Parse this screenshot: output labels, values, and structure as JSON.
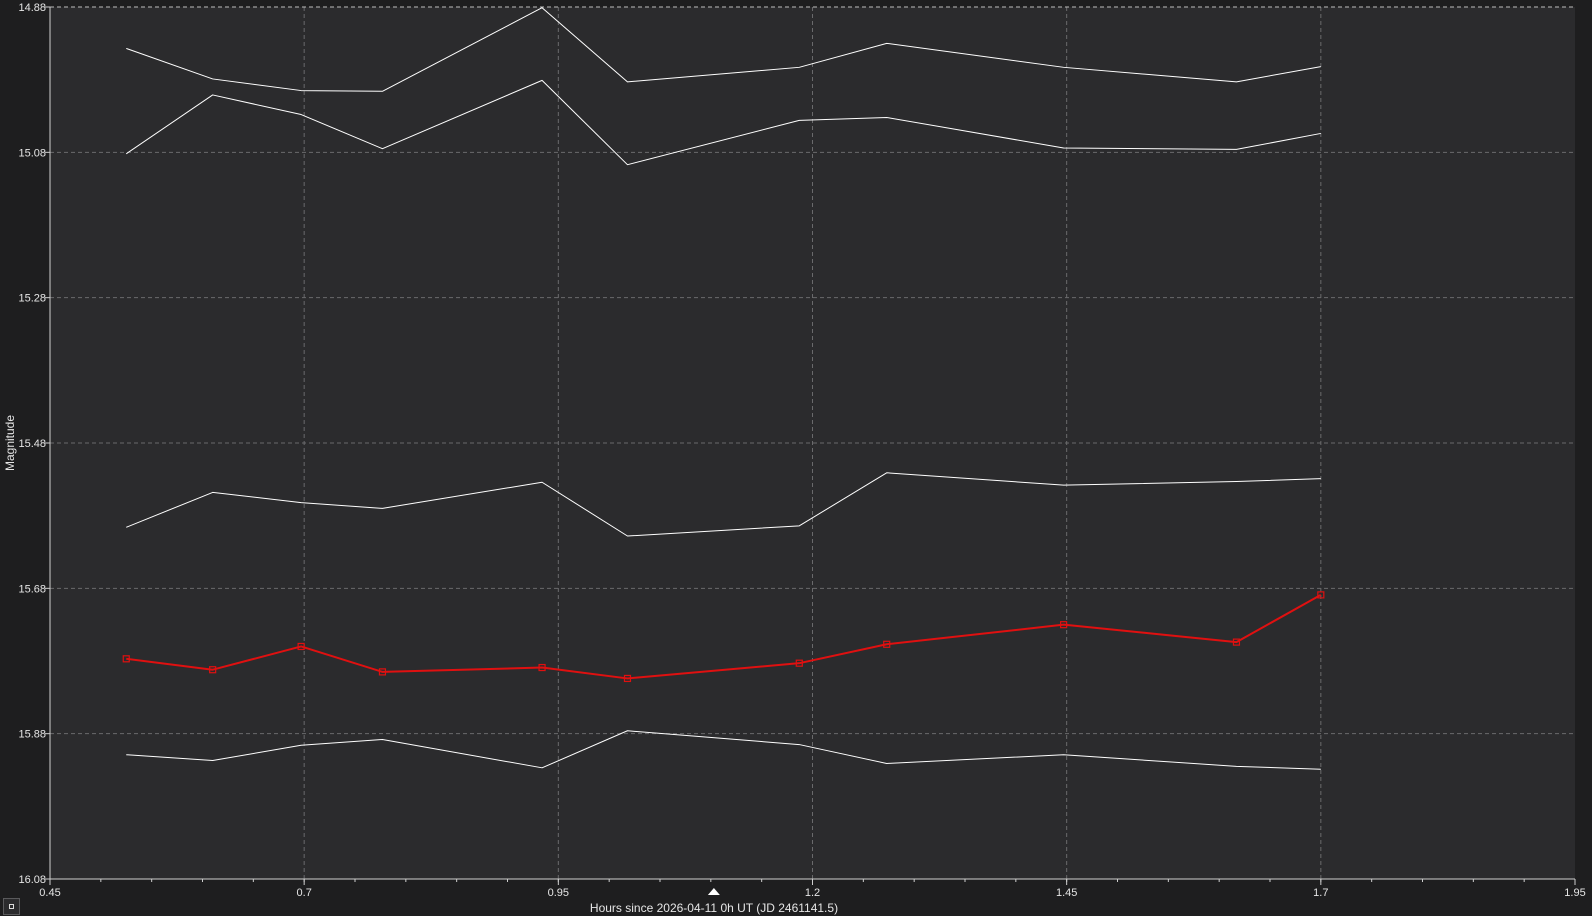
{
  "chart_data": {
    "type": "line",
    "xlabel": "Hours since 2026-04-11 0h UT (JD 2461141.5)",
    "ylabel": "Magnitude",
    "xlim": [
      0.45,
      1.95
    ],
    "ylim": [
      16.08,
      14.88
    ],
    "y_inverted": true,
    "grid": true,
    "x_ticks": [
      "0.45",
      "0.7",
      "0.95",
      "1.2",
      "1.45",
      "1.7",
      "1.95"
    ],
    "y_ticks": [
      "14.88",
      "15.08",
      "15.28",
      "15.48",
      "15.68",
      "15.88",
      "16.08"
    ],
    "x_marker": 1.103,
    "x": [
      0.525,
      0.61,
      0.697,
      0.777,
      0.934,
      1.018,
      1.187,
      1.273,
      1.447,
      1.617,
      1.7
    ],
    "series": [
      {
        "color": "#ffffff",
        "markers": false,
        "values": [
          14.937,
          14.979,
          14.995,
          14.996,
          14.881,
          14.983,
          14.963,
          14.93,
          14.963,
          14.983,
          14.962
        ]
      },
      {
        "color": "#ffffff",
        "markers": false,
        "values": [
          15.082,
          15.001,
          15.028,
          15.075,
          14.981,
          15.097,
          15.036,
          15.032,
          15.074,
          15.076,
          15.054
        ]
      },
      {
        "color": "#ffffff",
        "markers": false,
        "values": [
          15.596,
          15.548,
          15.562,
          15.57,
          15.534,
          15.608,
          15.594,
          15.521,
          15.538,
          15.533,
          15.529
        ]
      },
      {
        "color": "#e01010",
        "markers": true,
        "values": [
          15.777,
          15.792,
          15.76,
          15.795,
          15.789,
          15.804,
          15.783,
          15.757,
          15.73,
          15.754,
          15.689
        ]
      },
      {
        "color": "#ffffff",
        "markers": false,
        "values": [
          15.909,
          15.917,
          15.896,
          15.888,
          15.927,
          15.876,
          15.895,
          15.921,
          15.909,
          15.925,
          15.929
        ]
      }
    ]
  },
  "toolbar": {
    "corner_button_icon": "square-icon"
  }
}
